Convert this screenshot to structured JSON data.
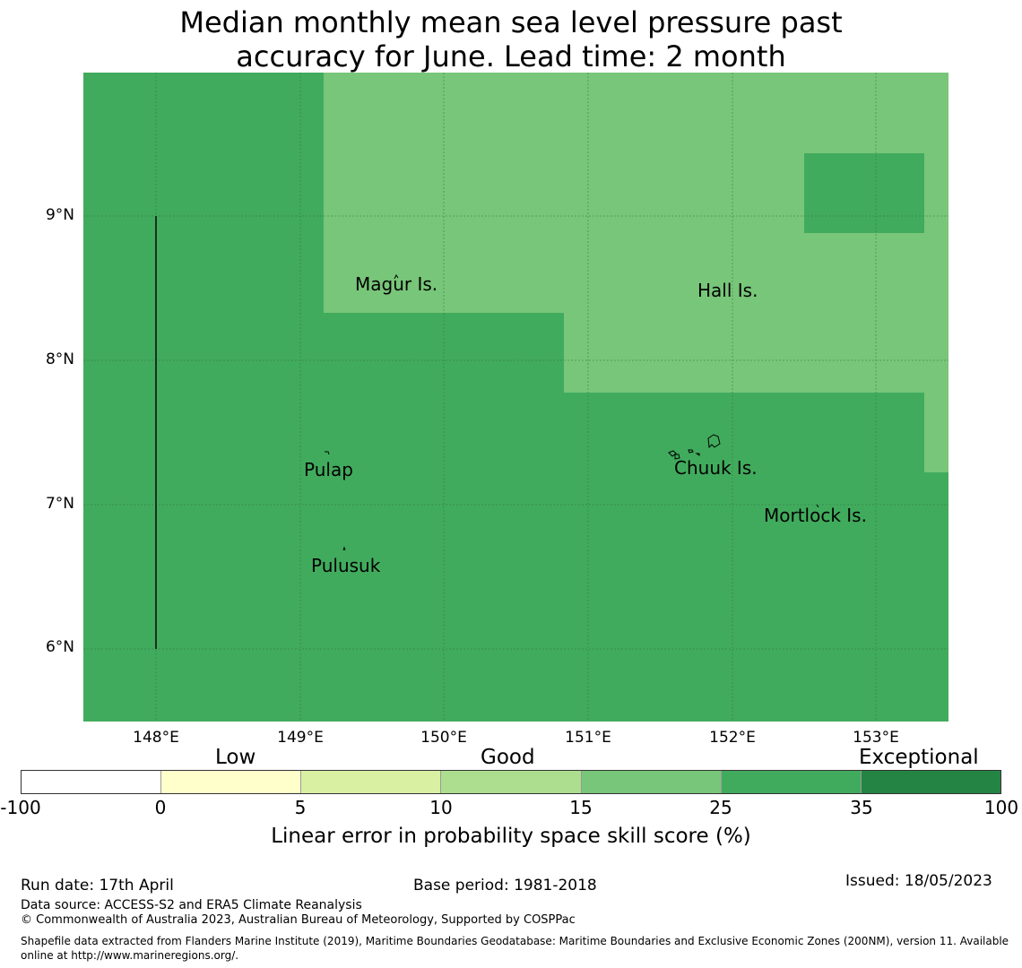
{
  "title": {
    "line1": "Median monthly mean sea level pressure past",
    "line2": "accuracy for June. Lead time: 2 month"
  },
  "map": {
    "lat_ticks": [
      "9°N",
      "8°N",
      "7°N",
      "6°N"
    ],
    "lon_ticks": [
      "148°E",
      "149°E",
      "150°E",
      "151°E",
      "152°E",
      "153°E"
    ],
    "places": [
      {
        "name": "Magur Is.",
        "label": "Magur Is."
      },
      {
        "name": "Hall Is.",
        "label": "Hall Is."
      },
      {
        "name": "Pulap",
        "label": "Pulap"
      },
      {
        "name": "Chuuk Is.",
        "label": "Chuuk Is."
      },
      {
        "name": "Mortlock Is.",
        "label": "Mortlock Is."
      },
      {
        "name": "Pulusuk",
        "label": "Pulusuk"
      }
    ],
    "colors": {
      "good_15_25": "#78c679",
      "good_25_35": "#41ab5d"
    },
    "skill_regions": {
      "base_category": "25 to 35",
      "lighter_region_category": "15 to 25",
      "darker_box_category": "25 to 35"
    }
  },
  "legend": {
    "categories": [
      "Low",
      "Good",
      "Exceptional"
    ],
    "tick_labels": [
      "-100",
      "0",
      "5",
      "10",
      "15",
      "25",
      "35",
      "100"
    ],
    "colors": [
      "#ffffff",
      "#ffffcc",
      "#d9f0a3",
      "#addd8e",
      "#78c679",
      "#41ab5d",
      "#238443"
    ],
    "axis_label": "Linear error in probability space skill score (%)"
  },
  "footer": {
    "run_date": "Run date: 17th April",
    "base_period": "Base period: 1981-2018",
    "issued": "Issued: 18/05/2023",
    "data_source": "Data source: ACCESS-S2 and ERA5 Climate Reanalysis",
    "copyright": "© Commonwealth of Australia 2023, Australian Bureau of Meteorology, Supported by COSPPac",
    "shapefile_line1": "Shapefile data extracted from Flanders Marine Institute (2019), Maritime Boundaries Geodatabase: Maritime Boundaries and Exclusive Economic Zones (200NM), version 11. Available",
    "shapefile_line2": "online at http://www.marineregions.org/."
  }
}
